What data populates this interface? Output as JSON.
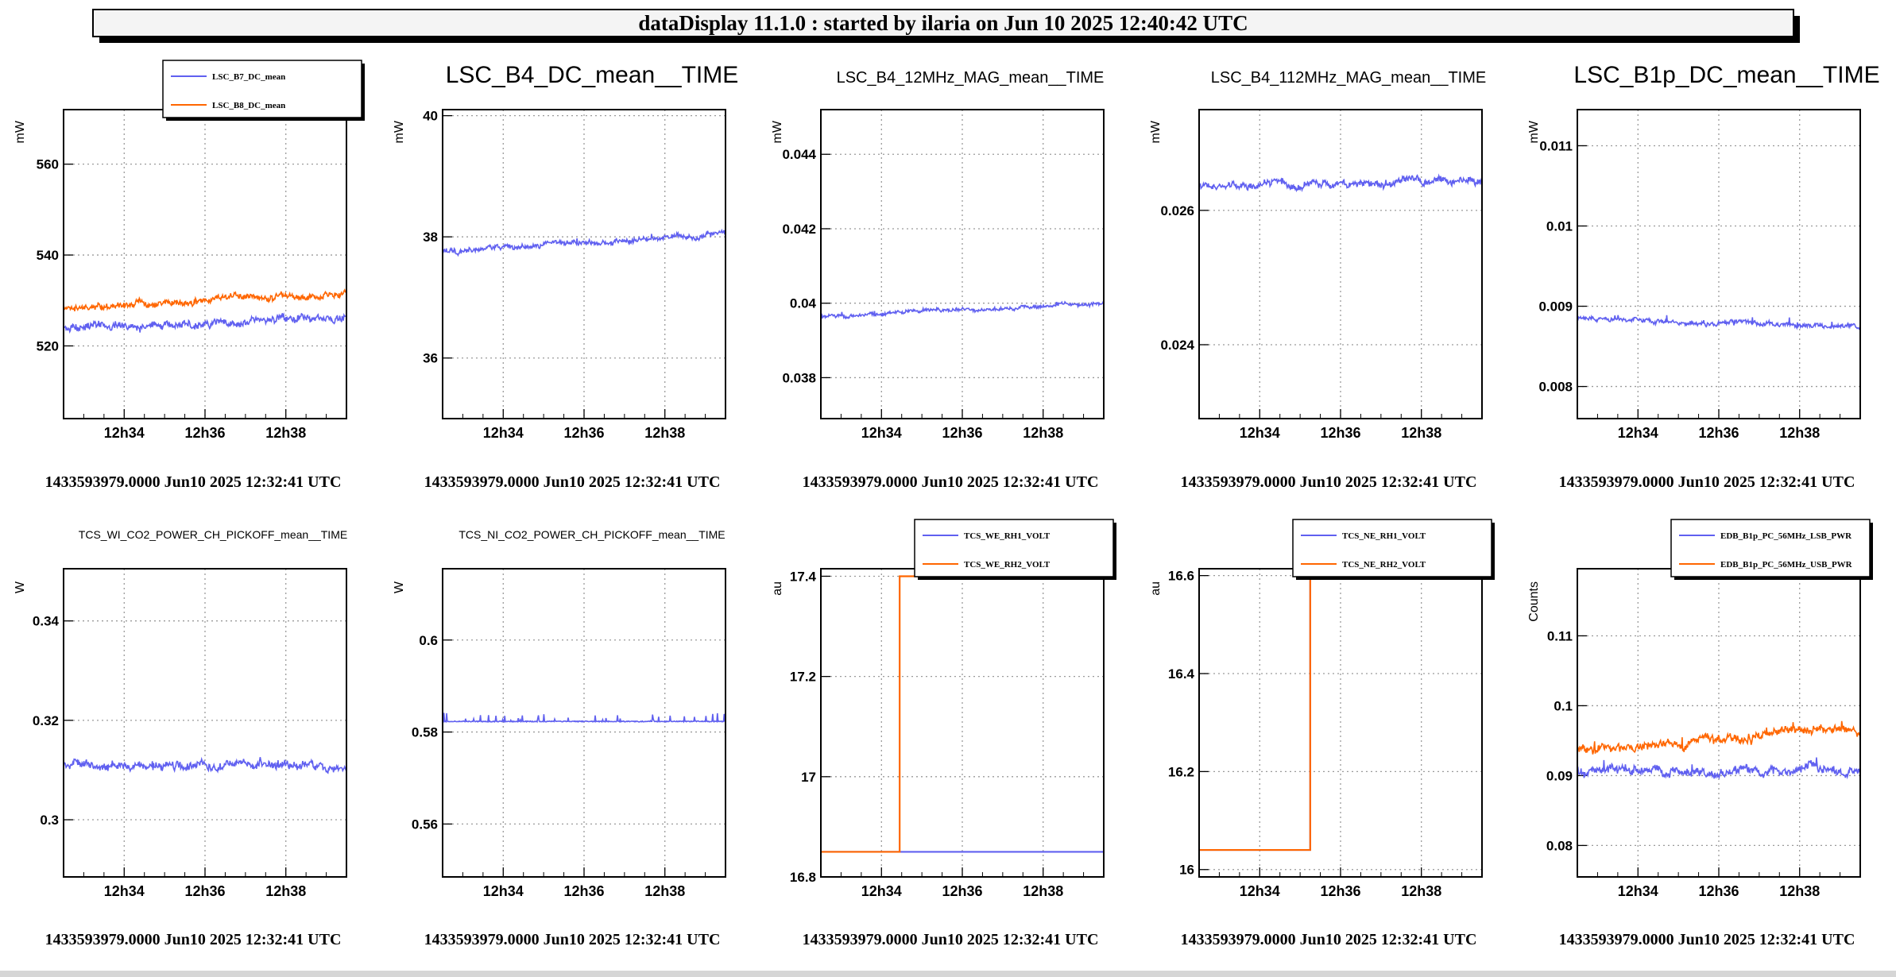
{
  "header": {
    "title": "dataDisplay 11.1.0 : started by ilaria on Jun 10 2025 12:40:42 UTC"
  },
  "colors": {
    "blue": "#6060f0",
    "orange": "#ff6600",
    "grid": "#9a9a9a",
    "frame": "#000000"
  },
  "chart_data": [
    {
      "type": "line",
      "title": "",
      "ylabel": "mW",
      "ylim": [
        504,
        572
      ],
      "yticks": [
        520,
        540,
        560
      ],
      "yticklabels": [
        "520",
        "540",
        "560"
      ],
      "xlim": [
        0,
        7
      ],
      "xticks": [
        1.5,
        3.5,
        5.5
      ],
      "xticklabels": [
        "12h34",
        "12h36",
        "12h38"
      ],
      "footer": "1433593979.0000 Jun10 2025 12:32:41 UTC",
      "legend": "top",
      "series": [
        {
          "name": "LSC_B7_DC_mean",
          "color": "blue",
          "kind": "noise",
          "base": 523.8,
          "trend": 2.5,
          "amp": 1.2,
          "spike": 0.15,
          "seed": 11
        },
        {
          "name": "LSC_B8_DC_mean",
          "color": "orange",
          "kind": "noise",
          "base": 528.2,
          "trend": 3.2,
          "amp": 1.0,
          "spike": 0.2,
          "seed": 12
        }
      ]
    },
    {
      "type": "line",
      "title": "LSC_B4_DC_mean__TIME",
      "ylabel": "mW",
      "ylim": [
        35.0,
        40.1
      ],
      "yticks": [
        36,
        38,
        40
      ],
      "yticklabels": [
        "36",
        "38",
        "40"
      ],
      "xlim": [
        0,
        7
      ],
      "xticks": [
        1.5,
        3.5,
        5.5
      ],
      "xticklabels": [
        "12h34",
        "12h36",
        "12h38"
      ],
      "footer": "1433593979.0000 Jun10 2025 12:32:41 UTC",
      "legend": "none",
      "series": [
        {
          "name": "",
          "color": "blue",
          "kind": "noise",
          "base": 37.75,
          "trend": 0.3,
          "amp": 0.06,
          "spike": 0.05,
          "seed": 21
        }
      ]
    },
    {
      "type": "line",
      "title": "LSC_B4_12MHz_MAG_mean__TIME",
      "ylabel": "mW",
      "ylim": [
        0.0369,
        0.0452
      ],
      "yticks": [
        0.038,
        0.04,
        0.042,
        0.044
      ],
      "yticklabels": [
        "0.038",
        "0.04",
        "0.042",
        "0.044"
      ],
      "xlim": [
        0,
        7
      ],
      "xticks": [
        1.5,
        3.5,
        5.5
      ],
      "xticklabels": [
        "12h34",
        "12h36",
        "12h38"
      ],
      "footer": "1433593979.0000 Jun10 2025 12:32:41 UTC",
      "legend": "none",
      "series": [
        {
          "name": "",
          "color": "blue",
          "kind": "noise",
          "base": 0.03965,
          "trend": 0.00035,
          "amp": 7e-05,
          "spike": 5e-05,
          "seed": 31
        }
      ]
    },
    {
      "type": "line",
      "title": "LSC_B4_112MHz_MAG_mean__TIME",
      "ylabel": "mW",
      "ylim": [
        0.0229,
        0.0275
      ],
      "yticks": [
        0.024,
        0.026
      ],
      "yticklabels": [
        "0.024",
        "0.026"
      ],
      "xlim": [
        0,
        7
      ],
      "xticks": [
        1.5,
        3.5,
        5.5
      ],
      "xticklabels": [
        "12h34",
        "12h36",
        "12h38"
      ],
      "footer": "1433593979.0000 Jun10 2025 12:32:41 UTC",
      "legend": "none",
      "series": [
        {
          "name": "",
          "color": "blue",
          "kind": "noise",
          "base": 0.02635,
          "trend": 0.0001,
          "amp": 8e-05,
          "spike": 6e-05,
          "seed": 41
        }
      ]
    },
    {
      "type": "line",
      "title": "LSC_B1p_DC_mean__TIME",
      "ylabel": "mW",
      "ylim": [
        0.0076,
        0.01145
      ],
      "yticks": [
        0.008,
        0.009,
        0.01,
        0.011
      ],
      "yticklabels": [
        "0.008",
        "0.009",
        "0.01",
        "0.011"
      ],
      "xlim": [
        0,
        7
      ],
      "xticks": [
        1.5,
        3.5,
        5.5
      ],
      "xticklabels": [
        "12h34",
        "12h36",
        "12h38"
      ],
      "footer": "1433593979.0000 Jun10 2025 12:32:41 UTC",
      "legend": "none",
      "series": [
        {
          "name": "",
          "color": "blue",
          "kind": "noise",
          "base": 0.00885,
          "trend": -0.0001,
          "amp": 4e-05,
          "spike": 6e-05,
          "seed": 51
        }
      ]
    },
    {
      "type": "line",
      "title": "TCS_WI_CO2_POWER_CH_PICKOFF_mean__TIME",
      "ylabel": "W",
      "ylim": [
        0.2885,
        0.3505
      ],
      "yticks": [
        0.3,
        0.32,
        0.34
      ],
      "yticklabels": [
        "0.3",
        "0.32",
        "0.34"
      ],
      "xlim": [
        0,
        7
      ],
      "xticks": [
        1.5,
        3.5,
        5.5
      ],
      "xticklabels": [
        "12h34",
        "12h36",
        "12h38"
      ],
      "footer": "1433593979.0000 Jun10 2025 12:32:41 UTC",
      "legend": "none",
      "series": [
        {
          "name": "",
          "color": "blue",
          "kind": "noise",
          "base": 0.3108,
          "trend": 0.0,
          "amp": 0.0012,
          "spike": 0.0008,
          "seed": 61
        }
      ]
    },
    {
      "type": "line",
      "title": "TCS_NI_CO2_POWER_CH_PICKOFF_mean__TIME",
      "ylabel": "W",
      "ylim": [
        0.5485,
        0.6155
      ],
      "yticks": [
        0.56,
        0.58,
        0.6
      ],
      "yticklabels": [
        "0.56",
        "0.58",
        "0.6"
      ],
      "xlim": [
        0,
        7
      ],
      "xticks": [
        1.5,
        3.5,
        5.5
      ],
      "xticklabels": [
        "12h34",
        "12h36",
        "12h38"
      ],
      "footer": "1433593979.0000 Jun10 2025 12:32:41 UTC",
      "legend": "none",
      "series": [
        {
          "name": "",
          "color": "blue",
          "kind": "floor",
          "base": 0.5823,
          "trend": 0.0,
          "amp": 0.0002,
          "spike": 0.0018,
          "seed": 71
        }
      ]
    },
    {
      "type": "line",
      "title": "",
      "ylabel": "au",
      "ylim": [
        16.8,
        17.415
      ],
      "yticks": [
        16.8,
        17,
        17.2,
        17.4
      ],
      "yticklabels": [
        "16.8",
        "17",
        "17.2",
        "17.4"
      ],
      "xlim": [
        0,
        7
      ],
      "xticks": [
        1.5,
        3.5,
        5.5
      ],
      "xticklabels": [
        "12h34",
        "12h36",
        "12h38"
      ],
      "footer": "1433593979.0000 Jun10 2025 12:32:41 UTC",
      "legend": "top",
      "series": [
        {
          "name": "TCS_WE_RH1_VOLT",
          "color": "blue",
          "kind": "step",
          "before": 16.85,
          "after": 16.85,
          "at": 1.95
        },
        {
          "name": "TCS_WE_RH2_VOLT",
          "color": "orange",
          "kind": "step",
          "before": 16.85,
          "after": 17.4,
          "at": 1.95
        }
      ]
    },
    {
      "type": "line",
      "title": "",
      "ylabel": "au",
      "ylim": [
        15.985,
        16.614
      ],
      "yticks": [
        16,
        16.2,
        16.4,
        16.6
      ],
      "yticklabels": [
        "16",
        "16.2",
        "16.4",
        "16.6"
      ],
      "xlim": [
        0,
        7
      ],
      "xticks": [
        1.5,
        3.5,
        5.5
      ],
      "xticklabels": [
        "12h34",
        "12h36",
        "12h38"
      ],
      "footer": "1433593979.0000 Jun10 2025 12:32:41 UTC",
      "legend": "top",
      "series": [
        {
          "name": "TCS_NE_RH1_VOLT",
          "color": "blue",
          "kind": "step",
          "before": 16.04,
          "after": 16.6,
          "at": 2.75
        },
        {
          "name": "TCS_NE_RH2_VOLT",
          "color": "orange",
          "kind": "step",
          "before": 16.04,
          "after": 16.6,
          "at": 2.75
        }
      ]
    },
    {
      "type": "line",
      "title": "",
      "ylabel": "Counts",
      "ylim": [
        0.0755,
        0.1196
      ],
      "yticks": [
        0.08,
        0.09,
        0.1,
        0.11
      ],
      "yticklabels": [
        "0.08",
        "0.09",
        "0.1",
        "0.11"
      ],
      "xlim": [
        0,
        7
      ],
      "xticks": [
        1.5,
        3.5,
        5.5
      ],
      "xticklabels": [
        "12h34",
        "12h36",
        "12h38"
      ],
      "footer": "1433593979.0000 Jun10 2025 12:32:41 UTC",
      "legend": "top",
      "series": [
        {
          "name": "EDB_B1p_PC_56MHz_LSB_PWR",
          "color": "blue",
          "kind": "noise",
          "base": 0.0905,
          "trend": 0.0003,
          "amp": 0.0009,
          "spike": 0.0008,
          "seed": 91
        },
        {
          "name": "EDB_B1p_PC_56MHz_USB_PWR",
          "color": "orange",
          "kind": "noise",
          "base": 0.0935,
          "trend": 0.0035,
          "amp": 0.0008,
          "spike": 0.0008,
          "seed": 92
        }
      ]
    }
  ]
}
